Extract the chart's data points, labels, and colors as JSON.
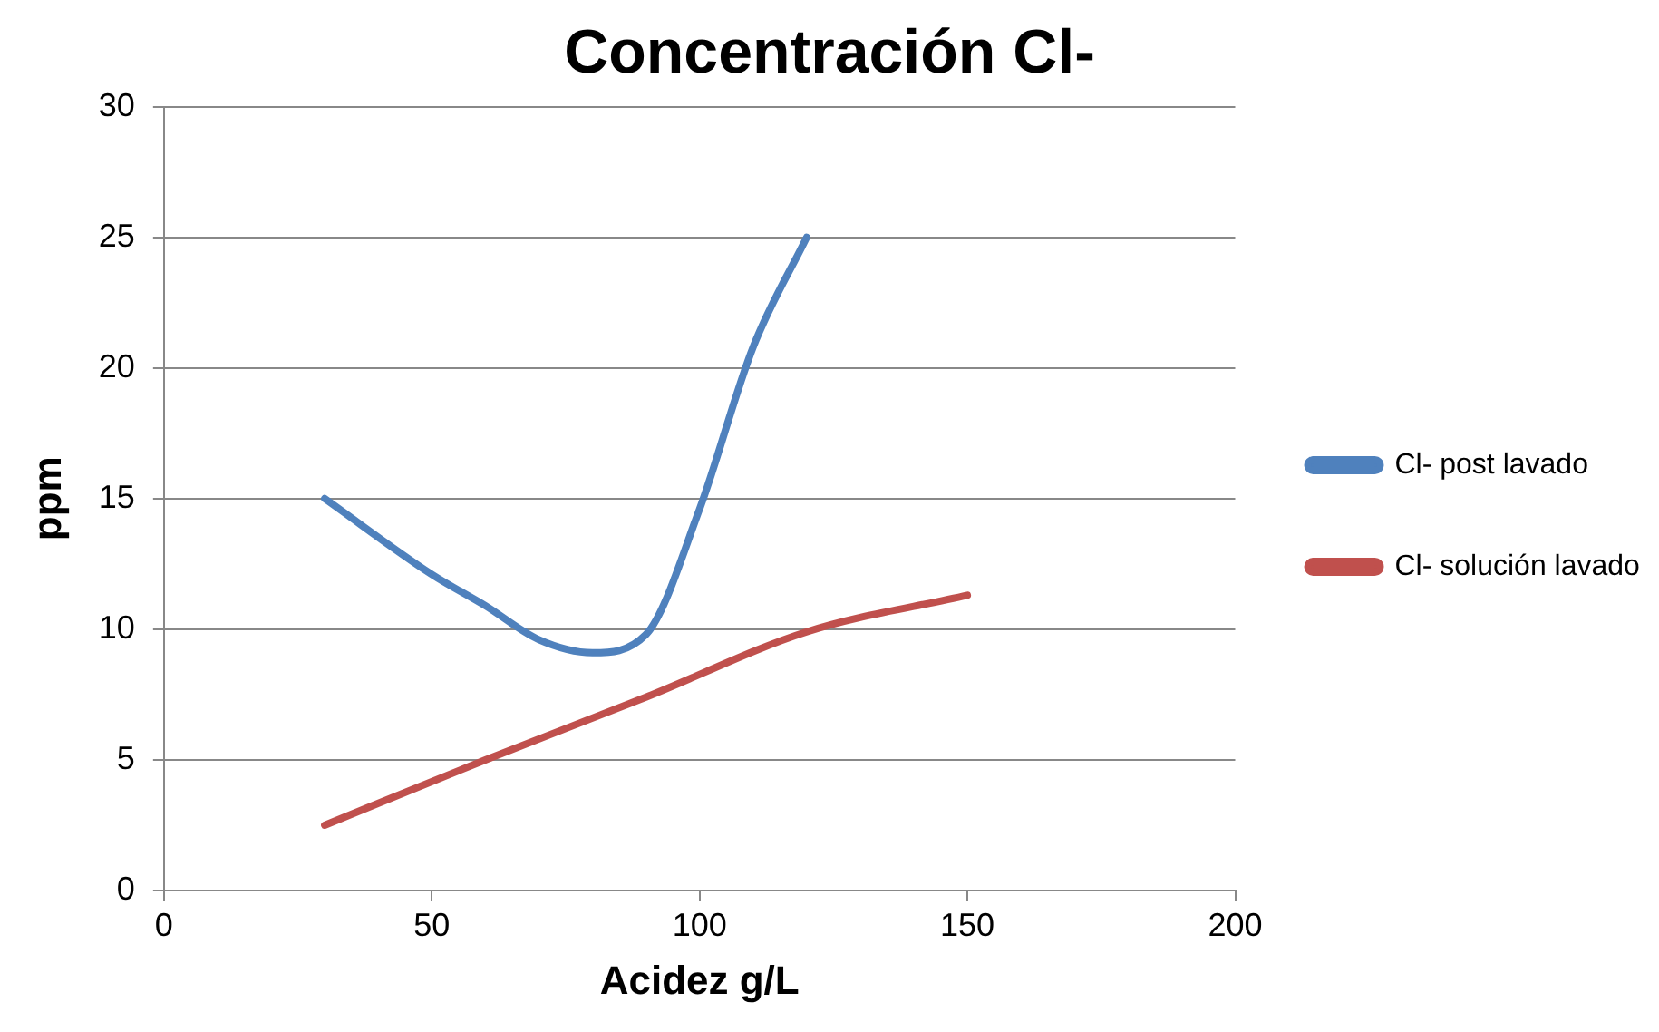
{
  "chart_data": {
    "type": "line",
    "title": "Concentración Cl-",
    "xlabel": "Acidez g/L",
    "ylabel": "ppm",
    "xlim": [
      0,
      200
    ],
    "xticks": [
      0,
      50,
      100,
      150,
      200
    ],
    "ylim": [
      0,
      30
    ],
    "yticks": [
      0,
      5,
      10,
      15,
      20,
      25,
      30
    ],
    "grid": "y",
    "legend": "right",
    "marker": "none",
    "line_style": "solid",
    "series": [
      {
        "name": "Cl- post lavado",
        "color": "#4f81bd",
        "x": [
          30,
          50,
          60,
          70,
          80,
          90,
          100,
          110,
          120
        ],
        "values": [
          15,
          12.1,
          10.9,
          9.6,
          9.1,
          9.8,
          14.6,
          20.8,
          25
        ]
      },
      {
        "name": "Cl- solución lavado",
        "color": "#c0504d",
        "x": [
          30,
          60,
          90,
          120,
          150
        ],
        "values": [
          2.5,
          5.0,
          7.4,
          9.9,
          11.3
        ]
      }
    ]
  }
}
